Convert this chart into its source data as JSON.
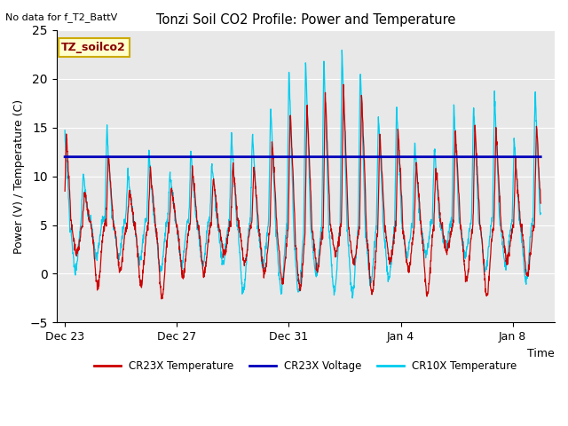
{
  "title": "Tonzi Soil CO2 Profile: Power and Temperature",
  "subtitle": "No data for f_T2_BattV",
  "ylabel": "Power (V) / Temperature (C)",
  "xlabel": "Time",
  "ylim": [
    -5,
    25
  ],
  "yticks": [
    -5,
    0,
    5,
    10,
    15,
    20,
    25
  ],
  "xtick_labels": [
    "Dec 23",
    "Dec 27",
    "Dec 31",
    "Jan 4",
    "Jan 8"
  ],
  "xtick_positions": [
    0,
    4,
    8,
    12,
    16
  ],
  "bg_color": "#e8e8e8",
  "voltage_value": 12.0,
  "legend_entries": [
    "CR23X Temperature",
    "CR23X Voltage",
    "CR10X Temperature"
  ],
  "annotation_box_text": "TZ_soilco2",
  "annotation_box_color": "#ffffcc",
  "annotation_box_edge": "#ccaa00",
  "xlim": [
    -0.3,
    17.5
  ]
}
